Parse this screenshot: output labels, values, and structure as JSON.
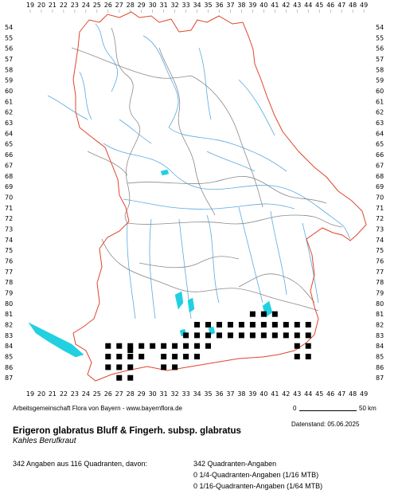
{
  "x_ticks": [
    "19",
    "20",
    "21",
    "22",
    "23",
    "24",
    "25",
    "26",
    "27",
    "28",
    "29",
    "30",
    "31",
    "32",
    "33",
    "34",
    "35",
    "36",
    "37",
    "38",
    "39",
    "40",
    "41",
    "42",
    "43",
    "44",
    "45",
    "46",
    "47",
    "48",
    "49"
  ],
  "y_ticks": [
    "54",
    "55",
    "56",
    "57",
    "58",
    "59",
    "60",
    "61",
    "62",
    "63",
    "64",
    "65",
    "66",
    "67",
    "68",
    "69",
    "70",
    "71",
    "72",
    "73",
    "74",
    "75",
    "76",
    "77",
    "78",
    "79",
    "80",
    "81",
    "82",
    "83",
    "84",
    "85",
    "86",
    "87"
  ],
  "colors": {
    "border": "#e0442a",
    "districts": "#8a8a8a",
    "rivers": "#5aa9e0",
    "lakes": "#22d0e0",
    "grid": "#9a9a9a",
    "occurrence": "#000000"
  },
  "occurrence_grid": {
    "x_unit": "MTB column",
    "y_unit": "MTB row",
    "points": [
      [
        26,
        84
      ],
      [
        27,
        84
      ],
      [
        28,
        84
      ],
      [
        29,
        84
      ],
      [
        26,
        85
      ],
      [
        27,
        85
      ],
      [
        28,
        85
      ],
      [
        26,
        86
      ],
      [
        27,
        86
      ],
      [
        28,
        86
      ],
      [
        27,
        87
      ],
      [
        28,
        87
      ],
      [
        28,
        84.4
      ],
      [
        29,
        85
      ],
      [
        30,
        84
      ],
      [
        31,
        84
      ],
      [
        32,
        84
      ],
      [
        31,
        85
      ],
      [
        32,
        85
      ],
      [
        32,
        86
      ],
      [
        31,
        86
      ],
      [
        33,
        83
      ],
      [
        33,
        84
      ],
      [
        34,
        82
      ],
      [
        34,
        83
      ],
      [
        34,
        84
      ],
      [
        34,
        85
      ],
      [
        33,
        85
      ],
      [
        35,
        82
      ],
      [
        35,
        83
      ],
      [
        35,
        84
      ],
      [
        36,
        82
      ],
      [
        36,
        83
      ],
      [
        37,
        82
      ],
      [
        37,
        83
      ],
      [
        38,
        82
      ],
      [
        38,
        83
      ],
      [
        39,
        82
      ],
      [
        39,
        83
      ],
      [
        40,
        82
      ],
      [
        40,
        83
      ],
      [
        41,
        82
      ],
      [
        41,
        83
      ],
      [
        42,
        82
      ],
      [
        42,
        83
      ],
      [
        43,
        82
      ],
      [
        43,
        83
      ],
      [
        43,
        84
      ],
      [
        43,
        85
      ],
      [
        44,
        82
      ],
      [
        44,
        83
      ],
      [
        44,
        84
      ],
      [
        44,
        85
      ],
      [
        40,
        81
      ],
      [
        41,
        81
      ],
      [
        39,
        81
      ]
    ]
  },
  "footer": {
    "credit": "Arbeitsgemeinschaft Flora von Bayern - www.bayernflora.de",
    "scale_start": "0",
    "scale_end": "50 km",
    "date": "Datenstand: 05.06.2025",
    "title": "Erigeron glabratus Bluff & Fingerh. subsp. glabratus",
    "subtitle": "Kahles Berufkraut",
    "summary": "342 Angaben aus 116 Quadranten, davon:",
    "line1": "342 Quadranten-Angaben",
    "line2": "0 1/4-Quadranten-Angaben (1/16 MTB)",
    "line3": "0 1/16-Quadranten-Angaben (1/64 MTB)"
  }
}
